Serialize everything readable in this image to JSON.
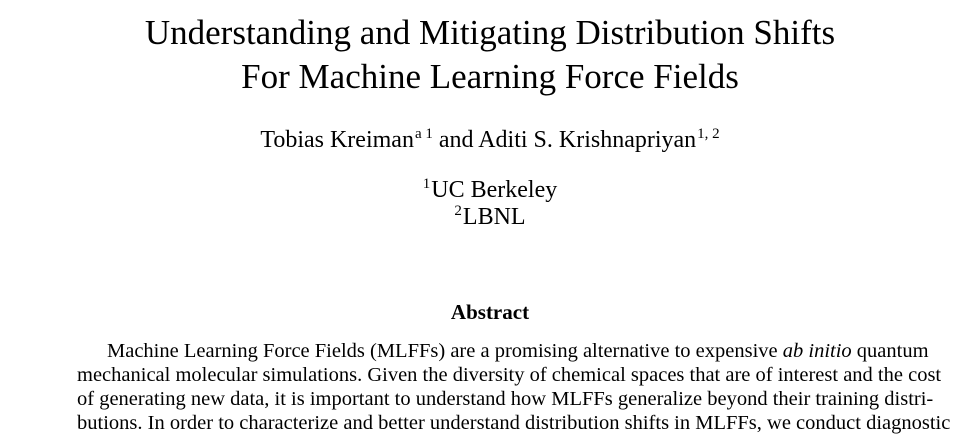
{
  "paper": {
    "title_line1": "Understanding and Mitigating Distribution Shifts",
    "title_line2": "For Machine Learning Force Fields",
    "authors": {
      "author1_name": "Tobias Kreiman",
      "author1_sup": "a 1",
      "conjunction": " and ",
      "author2_name": "Aditi S. Krishnapriyan",
      "author2_sup": "1, 2"
    },
    "affiliations": [
      {
        "sup": "1",
        "name": "UC Berkeley"
      },
      {
        "sup": "2",
        "name": "LBNL"
      }
    ],
    "abstract_heading": "Abstract",
    "abstract_lines": [
      {
        "before": "Machine Learning Force Fields (MLFFs) are a promising alternative to expensive ",
        "italic": "ab initio",
        "after": " quantum"
      },
      {
        "before": "mechanical molecular simulations. Given the diversity of chemical spaces that are of interest and the cost",
        "italic": "",
        "after": ""
      },
      {
        "before": "of generating new data, it is important to understand how MLFFs generalize beyond their training distri-",
        "italic": "",
        "after": ""
      },
      {
        "before": "butions. In order to characterize and better understand distribution shifts in MLFFs, we conduct diagnostic",
        "italic": "",
        "after": ""
      }
    ]
  }
}
